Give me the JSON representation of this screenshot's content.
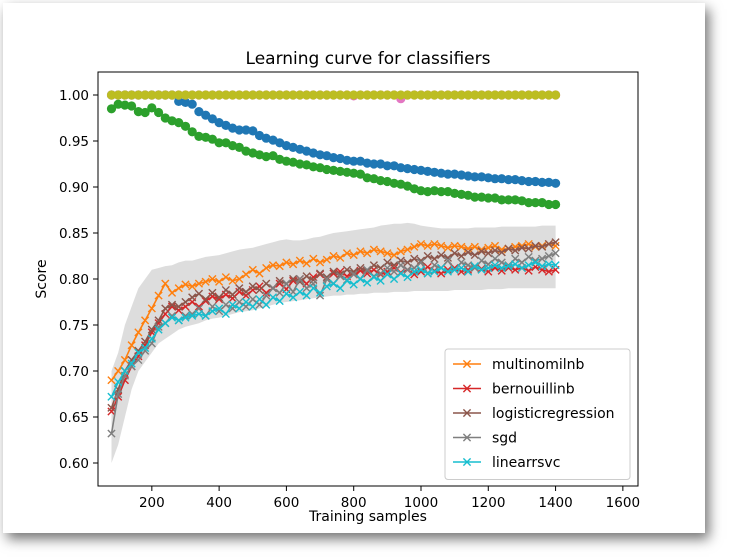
{
  "chart_data": {
    "type": "line",
    "title": "Learning curve for classifiers",
    "xlabel": "Training samples",
    "ylabel": "Score",
    "xlim": [
      40,
      1645
    ],
    "ylim": [
      0.575,
      1.025
    ],
    "xticks": [
      200,
      400,
      600,
      800,
      1000,
      1200,
      1400,
      1600
    ],
    "yticks": [
      0.6,
      0.65,
      0.7,
      0.75,
      0.8,
      0.85,
      0.9,
      0.95,
      1.0
    ],
    "grid": false,
    "legend_position": "lower-right",
    "x_start": 80,
    "x_step": 20,
    "training_series": [
      {
        "label": "training score (blue)",
        "color": "#1f77b4",
        "values": [
          1.0,
          1.0,
          1.0,
          1.0,
          1.0,
          1.0,
          1.0,
          1.0,
          1.0,
          1.0,
          0.993,
          0.992,
          0.99,
          0.982,
          0.978,
          0.974,
          0.97,
          0.967,
          0.964,
          0.962,
          0.962,
          0.961,
          0.956,
          0.953,
          0.951,
          0.948,
          0.945,
          0.943,
          0.941,
          0.939,
          0.937,
          0.935,
          0.934,
          0.932,
          0.931,
          0.929,
          0.928,
          0.928,
          0.926,
          0.925,
          0.925,
          0.923,
          0.923,
          0.921,
          0.92,
          0.919,
          0.918,
          0.917,
          0.916,
          0.915,
          0.914,
          0.914,
          0.913,
          0.912,
          0.911,
          0.911,
          0.91,
          0.909,
          0.909,
          0.908,
          0.908,
          0.907,
          0.906,
          0.906,
          0.905,
          0.905,
          0.904
        ]
      },
      {
        "label": "training score (green)",
        "color": "#2ca02c",
        "values": [
          0.985,
          0.99,
          0.989,
          0.988,
          0.982,
          0.981,
          0.986,
          0.981,
          0.975,
          0.972,
          0.97,
          0.966,
          0.96,
          0.955,
          0.954,
          0.952,
          0.948,
          0.948,
          0.945,
          0.943,
          0.939,
          0.937,
          0.935,
          0.933,
          0.934,
          0.93,
          0.928,
          0.927,
          0.925,
          0.924,
          0.922,
          0.921,
          0.919,
          0.918,
          0.917,
          0.916,
          0.915,
          0.914,
          0.91,
          0.909,
          0.907,
          0.906,
          0.904,
          0.903,
          0.901,
          0.898,
          0.896,
          0.895,
          0.896,
          0.895,
          0.895,
          0.893,
          0.892,
          0.891,
          0.889,
          0.889,
          0.888,
          0.888,
          0.886,
          0.886,
          0.886,
          0.885,
          0.883,
          0.883,
          0.883,
          0.881,
          0.881
        ]
      },
      {
        "label": "training score (pink)",
        "color": "#e377c2",
        "values": [
          1.0,
          1.0,
          1.0,
          1.0,
          1.0,
          1.0,
          1.0,
          1.0,
          1.0,
          1.0,
          1.0,
          1.0,
          1.0,
          1.0,
          1.0,
          1.0,
          1.0,
          1.0,
          1.0,
          1.0,
          1.0,
          1.0,
          1.0,
          1.0,
          1.0,
          1.0,
          1.0,
          1.0,
          1.0,
          1.0,
          1.0,
          1.0,
          1.0,
          1.0,
          1.0,
          1.0,
          0.999,
          1.0,
          1.0,
          1.0,
          1.0,
          1.0,
          1.0,
          0.996,
          1.0,
          1.0,
          1.0,
          1.0,
          1.0,
          1.0,
          1.0,
          1.0,
          1.0,
          1.0,
          1.0,
          1.0,
          1.0,
          1.0,
          1.0,
          1.0,
          1.0,
          1.0,
          1.0,
          1.0,
          1.0,
          1.0,
          1.0
        ]
      },
      {
        "label": "training score (olive)",
        "color": "#bcbd22",
        "values": [
          1.0,
          1.0,
          1.0,
          1.0,
          1.0,
          1.0,
          1.0,
          1.0,
          1.0,
          1.0,
          1.0,
          1.0,
          1.0,
          1.0,
          1.0,
          1.0,
          1.0,
          1.0,
          1.0,
          1.0,
          1.0,
          1.0,
          1.0,
          1.0,
          1.0,
          1.0,
          1.0,
          1.0,
          1.0,
          1.0,
          1.0,
          1.0,
          1.0,
          1.0,
          1.0,
          1.0,
          1.0,
          1.0,
          1.0,
          1.0,
          1.0,
          1.0,
          1.0,
          1.0,
          1.0,
          1.0,
          1.0,
          1.0,
          1.0,
          1.0,
          1.0,
          1.0,
          1.0,
          1.0,
          1.0,
          1.0,
          1.0,
          1.0,
          1.0,
          1.0,
          1.0,
          1.0,
          1.0,
          1.0,
          1.0,
          1.0,
          1.0
        ]
      }
    ],
    "band": {
      "upper": [
        0.7,
        0.72,
        0.75,
        0.77,
        0.79,
        0.8,
        0.81,
        0.812,
        0.814,
        0.815,
        0.818,
        0.82,
        0.82,
        0.822,
        0.824,
        0.825,
        0.826,
        0.828,
        0.83,
        0.832,
        0.833,
        0.834,
        0.836,
        0.838,
        0.84,
        0.842,
        0.843,
        0.842,
        0.842,
        0.843,
        0.845,
        0.846,
        0.848,
        0.85,
        0.851,
        0.852,
        0.853,
        0.854,
        0.855,
        0.856,
        0.858,
        0.859,
        0.86,
        0.86,
        0.861,
        0.86,
        0.858,
        0.857,
        0.856,
        0.855,
        0.855,
        0.855,
        0.855,
        0.855,
        0.856,
        0.856,
        0.856,
        0.856,
        0.857,
        0.857,
        0.857,
        0.857,
        0.857,
        0.857,
        0.858,
        0.858,
        0.858
      ],
      "lower": [
        0.6,
        0.62,
        0.65,
        0.68,
        0.7,
        0.71,
        0.72,
        0.73,
        0.735,
        0.74,
        0.745,
        0.748,
        0.75,
        0.752,
        0.755,
        0.757,
        0.758,
        0.76,
        0.762,
        0.764,
        0.765,
        0.766,
        0.768,
        0.77,
        0.772,
        0.774,
        0.775,
        0.776,
        0.777,
        0.778,
        0.779,
        0.78,
        0.781,
        0.782,
        0.782,
        0.783,
        0.783,
        0.784,
        0.784,
        0.785,
        0.785,
        0.785,
        0.786,
        0.786,
        0.786,
        0.787,
        0.787,
        0.787,
        0.787,
        0.787,
        0.787,
        0.788,
        0.788,
        0.788,
        0.788,
        0.788,
        0.789,
        0.789,
        0.789,
        0.79,
        0.79,
        0.79,
        0.79,
        0.79,
        0.79,
        0.79,
        0.79
      ]
    },
    "series": [
      {
        "name": "multinomilnb",
        "color": "#ff7f0e",
        "values": [
          0.69,
          0.7,
          0.712,
          0.728,
          0.742,
          0.755,
          0.768,
          0.782,
          0.795,
          0.785,
          0.79,
          0.794,
          0.792,
          0.795,
          0.797,
          0.8,
          0.797,
          0.802,
          0.798,
          0.8,
          0.805,
          0.81,
          0.806,
          0.812,
          0.815,
          0.814,
          0.818,
          0.816,
          0.82,
          0.817,
          0.822,
          0.818,
          0.821,
          0.825,
          0.823,
          0.828,
          0.826,
          0.83,
          0.828,
          0.832,
          0.83,
          0.828,
          0.826,
          0.83,
          0.832,
          0.835,
          0.838,
          0.836,
          0.838,
          0.836,
          0.834,
          0.836,
          0.835,
          0.833,
          0.835,
          0.832,
          0.834,
          0.836,
          0.832,
          0.833,
          0.835,
          0.836,
          0.838,
          0.835,
          0.836,
          0.838,
          0.836
        ]
      },
      {
        "name": "bernouillinb",
        "color": "#d62728",
        "values": [
          0.656,
          0.672,
          0.69,
          0.705,
          0.716,
          0.728,
          0.742,
          0.752,
          0.762,
          0.77,
          0.766,
          0.77,
          0.775,
          0.77,
          0.776,
          0.781,
          0.778,
          0.783,
          0.779,
          0.786,
          0.782,
          0.788,
          0.792,
          0.785,
          0.79,
          0.795,
          0.789,
          0.798,
          0.8,
          0.795,
          0.802,
          0.805,
          0.8,
          0.806,
          0.808,
          0.803,
          0.805,
          0.809,
          0.806,
          0.81,
          0.805,
          0.808,
          0.812,
          0.807,
          0.81,
          0.805,
          0.808,
          0.813,
          0.809,
          0.806,
          0.81,
          0.812,
          0.808,
          0.81,
          0.813,
          0.811,
          0.808,
          0.812,
          0.809,
          0.812,
          0.81,
          0.812,
          0.809,
          0.813,
          0.81,
          0.808,
          0.81
        ]
      },
      {
        "name": "logisticregression",
        "color": "#8c564b",
        "values": [
          0.66,
          0.68,
          0.7,
          0.712,
          0.722,
          0.732,
          0.745,
          0.755,
          0.768,
          0.772,
          0.77,
          0.775,
          0.78,
          0.784,
          0.778,
          0.785,
          0.78,
          0.788,
          0.783,
          0.79,
          0.786,
          0.792,
          0.788,
          0.795,
          0.79,
          0.798,
          0.795,
          0.8,
          0.797,
          0.803,
          0.799,
          0.806,
          0.802,
          0.808,
          0.805,
          0.81,
          0.808,
          0.812,
          0.809,
          0.815,
          0.812,
          0.818,
          0.815,
          0.82,
          0.818,
          0.822,
          0.82,
          0.825,
          0.822,
          0.826,
          0.823,
          0.828,
          0.825,
          0.829,
          0.826,
          0.83,
          0.828,
          0.831,
          0.829,
          0.833,
          0.831,
          0.834,
          0.833,
          0.836,
          0.835,
          0.838,
          0.84
        ]
      },
      {
        "name": "sgd",
        "color": "#7f7f7f",
        "values": [
          0.632,
          0.675,
          0.695,
          0.705,
          0.712,
          0.722,
          0.73,
          0.748,
          0.752,
          0.76,
          0.755,
          0.76,
          0.762,
          0.768,
          0.76,
          0.77,
          0.765,
          0.772,
          0.768,
          0.775,
          0.77,
          0.778,
          0.772,
          0.782,
          0.79,
          0.785,
          0.795,
          0.786,
          0.8,
          0.79,
          0.795,
          0.782,
          0.8,
          0.795,
          0.803,
          0.799,
          0.805,
          0.8,
          0.81,
          0.803,
          0.806,
          0.812,
          0.808,
          0.815,
          0.81,
          0.812,
          0.818,
          0.806,
          0.815,
          0.812,
          0.82,
          0.81,
          0.818,
          0.815,
          0.812,
          0.82,
          0.816,
          0.822,
          0.818,
          0.815,
          0.822,
          0.818,
          0.824,
          0.82,
          0.822,
          0.825,
          0.828
        ]
      },
      {
        "name": "linearrsvc",
        "color": "#17becf",
        "values": [
          0.672,
          0.688,
          0.7,
          0.708,
          0.72,
          0.725,
          0.735,
          0.745,
          0.752,
          0.758,
          0.755,
          0.758,
          0.76,
          0.762,
          0.76,
          0.765,
          0.768,
          0.762,
          0.772,
          0.768,
          0.775,
          0.77,
          0.778,
          0.772,
          0.78,
          0.776,
          0.784,
          0.78,
          0.786,
          0.782,
          0.79,
          0.785,
          0.792,
          0.795,
          0.79,
          0.798,
          0.794,
          0.8,
          0.796,
          0.802,
          0.798,
          0.805,
          0.8,
          0.806,
          0.802,
          0.808,
          0.81,
          0.806,
          0.808,
          0.812,
          0.808,
          0.81,
          0.812,
          0.808,
          0.814,
          0.81,
          0.812,
          0.815,
          0.812,
          0.814,
          0.816,
          0.812,
          0.815,
          0.818,
          0.814,
          0.816,
          0.815
        ]
      }
    ]
  }
}
